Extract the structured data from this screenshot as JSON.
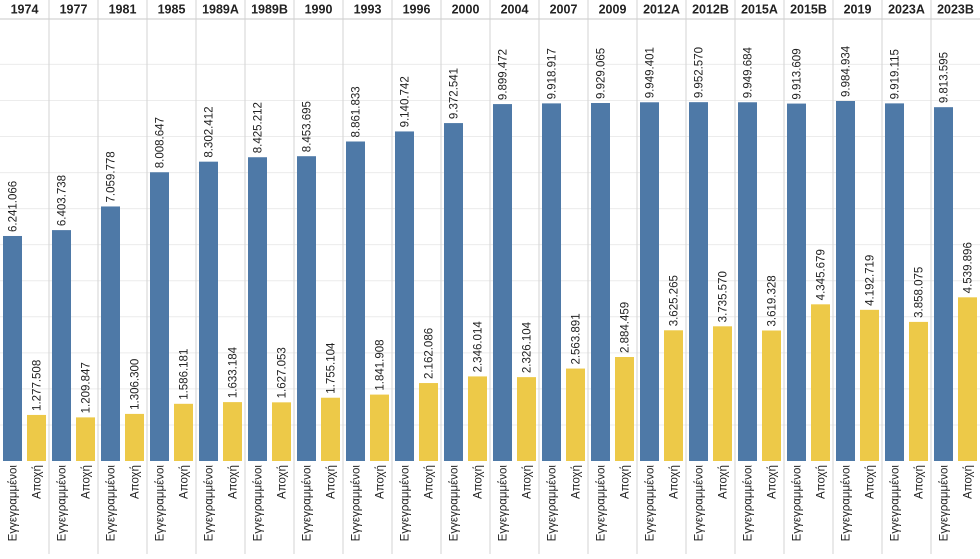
{
  "chart_data": {
    "type": "bar",
    "categories": [
      "1974",
      "1977",
      "1981",
      "1985",
      "1989Α",
      "1989Β",
      "1990",
      "1993",
      "1996",
      "2000",
      "2004",
      "2007",
      "2009",
      "2012Α",
      "2012Β",
      "2015Α",
      "2015Β",
      "2019",
      "2023Α",
      "2023Β"
    ],
    "series": [
      {
        "name": "Εγγεγραμμένοι",
        "color": "#4e79a7",
        "values": [
          6241066,
          6403738,
          7059778,
          8008647,
          8302412,
          8425212,
          8453695,
          8861833,
          9140742,
          9372541,
          9899472,
          9918917,
          9929065,
          9949401,
          9952570,
          9949684,
          9913609,
          9984934,
          9919115,
          9813595
        ],
        "labels": [
          "6.241.066",
          "6.403.738",
          "7.059.778",
          "8.008.647",
          "8.302.412",
          "8.425.212",
          "8.453.695",
          "8.861.833",
          "9.140.742",
          "9.372.541",
          "9.899.472",
          "9.918.917",
          "9.929.065",
          "9.949.401",
          "9.952.570",
          "9.949.684",
          "9.913.609",
          "9.984.934",
          "9.919.115",
          "9.813.595"
        ]
      },
      {
        "name": "Αποχή",
        "color": "#edc948",
        "values": [
          1277508,
          1209847,
          1306300,
          1586181,
          1633184,
          1627053,
          1755104,
          1841908,
          2162086,
          2346014,
          2326104,
          2563891,
          2884459,
          3625265,
          3735570,
          3619328,
          4345679,
          4192719,
          3858075,
          4539896
        ],
        "labels": [
          "1.277.508",
          "1.209.847",
          "1.306.300",
          "1.586.181",
          "1.633.184",
          "1.627.053",
          "1.755.104",
          "1.841.908",
          "2.162.086",
          "2.346.014",
          "2.326.104",
          "2.563.891",
          "2.884.459",
          "3.625.265",
          "3.735.570",
          "3.619.328",
          "4.345.679",
          "4.192.719",
          "3.858.075",
          "4.539.896"
        ]
      }
    ],
    "ylim": [
      0,
      11000000
    ],
    "grid": true,
    "legend": "none"
  }
}
